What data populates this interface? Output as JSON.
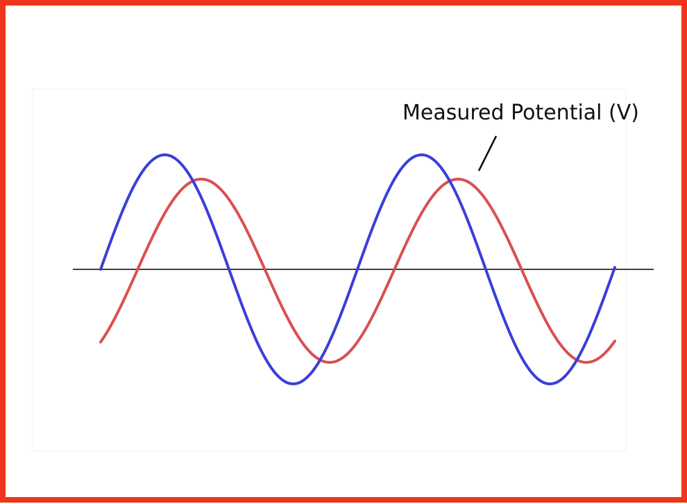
{
  "label": "Measured Potential (V)"
}
